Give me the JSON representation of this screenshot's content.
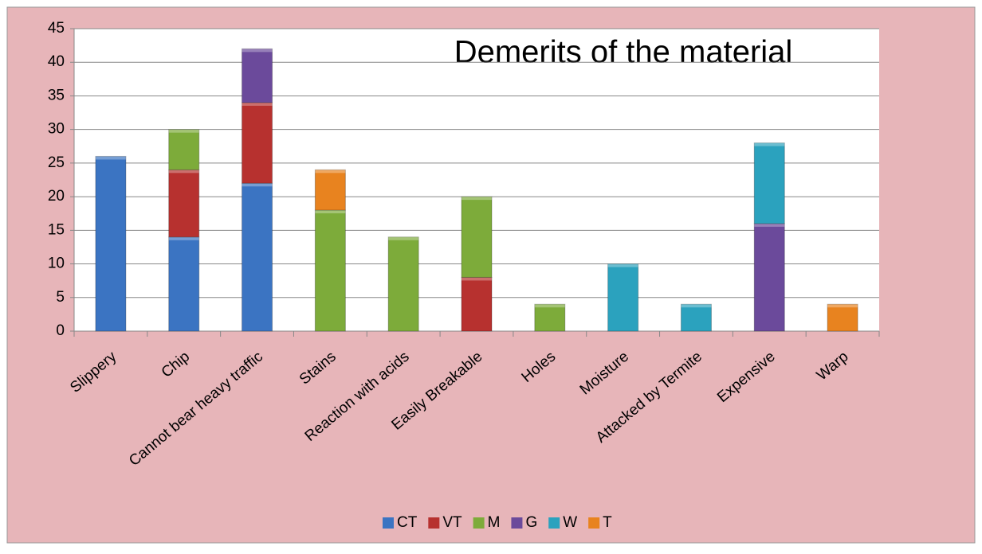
{
  "chart_data": {
    "type": "bar",
    "stacked": true,
    "title": "Demerits of the material",
    "categories": [
      "Slippery",
      "Chip",
      "Cannot bear heavy traffic",
      "Stains",
      "Reaction with acids",
      "Easily Breakable",
      "Holes",
      "Moisture",
      "Attacked by Termite",
      "Expensive",
      "Warp"
    ],
    "series": [
      {
        "name": "CT",
        "color": "#3b74c2",
        "values": [
          26,
          14,
          22,
          null,
          null,
          null,
          null,
          null,
          null,
          null,
          null
        ]
      },
      {
        "name": "VT",
        "color": "#b7312f",
        "values": [
          null,
          10,
          12,
          null,
          null,
          8,
          null,
          null,
          null,
          null,
          null
        ]
      },
      {
        "name": "M",
        "color": "#7dab3a",
        "values": [
          null,
          6,
          null,
          18,
          14,
          12,
          4,
          null,
          null,
          null,
          null
        ]
      },
      {
        "name": "G",
        "color": "#6b4a9b",
        "values": [
          null,
          null,
          8,
          null,
          null,
          null,
          null,
          null,
          null,
          16,
          null
        ]
      },
      {
        "name": "W",
        "color": "#2ba2be",
        "values": [
          null,
          null,
          null,
          null,
          null,
          null,
          null,
          10,
          4,
          12,
          null
        ]
      },
      {
        "name": "T",
        "color": "#e8831f",
        "values": [
          null,
          null,
          null,
          6,
          null,
          null,
          null,
          null,
          null,
          null,
          4
        ]
      }
    ],
    "ylim": [
      0,
      45
    ],
    "yticks": [
      0,
      5,
      10,
      15,
      20,
      25,
      30,
      35,
      40,
      45
    ],
    "grid": true,
    "legend": "bottom"
  }
}
